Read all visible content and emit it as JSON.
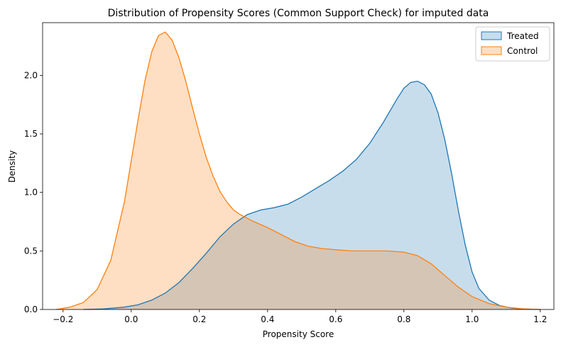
{
  "chart_data": {
    "type": "area",
    "title": "Distribution of Propensity Scores (Common Support Check) for imputed data",
    "xlabel": "Propensity Score",
    "ylabel": "Density",
    "xlim": [
      -0.26,
      1.24
    ],
    "ylim": [
      0,
      2.45
    ],
    "xticks": [
      -0.2,
      0.0,
      0.2,
      0.4,
      0.6,
      0.8,
      1.0,
      1.2
    ],
    "xtick_labels": [
      "−0.2",
      "0.0",
      "0.2",
      "0.4",
      "0.6",
      "0.8",
      "1.0",
      "1.2"
    ],
    "yticks": [
      0.0,
      0.5,
      1.0,
      1.5,
      2.0
    ],
    "ytick_labels": [
      "0.0",
      "0.5",
      "1.0",
      "1.5",
      "2.0"
    ],
    "grid": false,
    "legend_position": "top-right",
    "series": [
      {
        "name": "Treated",
        "line_color": "#1f77b4",
        "fill_color": "#1f77b4",
        "x": [
          -0.14,
          -0.08,
          -0.02,
          0.02,
          0.06,
          0.1,
          0.14,
          0.18,
          0.22,
          0.26,
          0.3,
          0.34,
          0.38,
          0.42,
          0.46,
          0.5,
          0.54,
          0.58,
          0.62,
          0.66,
          0.7,
          0.74,
          0.78,
          0.8,
          0.82,
          0.84,
          0.86,
          0.88,
          0.9,
          0.92,
          0.94,
          0.96,
          0.98,
          1.0,
          1.02,
          1.05,
          1.08,
          1.11,
          1.14,
          1.2
        ],
        "y": [
          0.0,
          0.005,
          0.02,
          0.04,
          0.08,
          0.14,
          0.23,
          0.35,
          0.48,
          0.62,
          0.73,
          0.81,
          0.85,
          0.87,
          0.9,
          0.96,
          1.03,
          1.1,
          1.18,
          1.28,
          1.42,
          1.6,
          1.8,
          1.89,
          1.94,
          1.95,
          1.92,
          1.84,
          1.68,
          1.45,
          1.16,
          0.84,
          0.55,
          0.32,
          0.18,
          0.08,
          0.035,
          0.015,
          0.005,
          0.0
        ]
      },
      {
        "name": "Control",
        "line_color": "#ff7f0e",
        "fill_color": "#ff7f0e",
        "x": [
          -0.22,
          -0.18,
          -0.14,
          -0.1,
          -0.06,
          -0.02,
          0.0,
          0.02,
          0.04,
          0.06,
          0.08,
          0.1,
          0.12,
          0.14,
          0.16,
          0.18,
          0.2,
          0.22,
          0.24,
          0.26,
          0.28,
          0.3,
          0.32,
          0.34,
          0.36,
          0.4,
          0.44,
          0.48,
          0.52,
          0.56,
          0.6,
          0.65,
          0.7,
          0.75,
          0.8,
          0.84,
          0.88,
          0.92,
          0.96,
          1.0,
          1.05,
          1.1,
          1.15,
          1.2
        ],
        "y": [
          0.0,
          0.02,
          0.06,
          0.17,
          0.42,
          0.92,
          1.27,
          1.62,
          1.95,
          2.2,
          2.34,
          2.37,
          2.3,
          2.15,
          1.95,
          1.72,
          1.5,
          1.3,
          1.14,
          1.01,
          0.92,
          0.85,
          0.81,
          0.78,
          0.75,
          0.7,
          0.64,
          0.58,
          0.54,
          0.52,
          0.51,
          0.5,
          0.5,
          0.5,
          0.49,
          0.46,
          0.39,
          0.29,
          0.19,
          0.11,
          0.05,
          0.02,
          0.005,
          0.0
        ]
      }
    ]
  }
}
